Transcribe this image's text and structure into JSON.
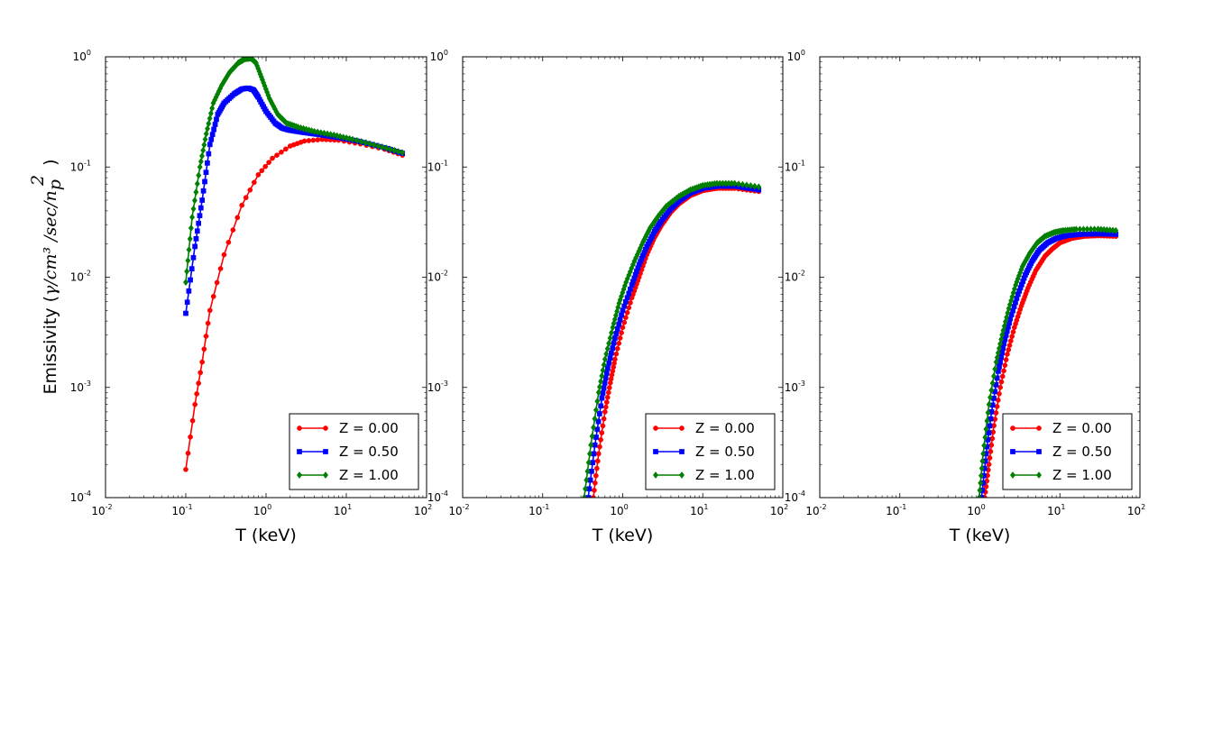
{
  "colors": {
    "red": "#ff0000",
    "blue": "#0000ff",
    "green": "#007f00"
  },
  "chart_data": [
    {
      "type": "line",
      "xscale": "log",
      "yscale": "log",
      "xlim": [
        0.01,
        100
      ],
      "ylim": [
        0.0001,
        1
      ],
      "xlabel": "T (keV)",
      "ylabel": "Emissivity (γ/cm³ /sec/n_p² )",
      "ylabel_prefix": "Emissivity (",
      "ylabel_math": "γ/cm³ /sec/n",
      "ylabel_sub": "p",
      "ylabel_sup": "2",
      "ylabel_suffix": " )",
      "x_ticks": [
        {
          "b": "10",
          "e": "-2",
          "v": 0.01
        },
        {
          "b": "10",
          "e": "-1",
          "v": 0.1
        },
        {
          "b": "10",
          "e": "0",
          "v": 1
        },
        {
          "b": "10",
          "e": "1",
          "v": 10
        },
        {
          "b": "10",
          "e": "2",
          "v": 100
        }
      ],
      "y_ticks": [
        {
          "b": "10",
          "e": "-4",
          "v": 0.0001
        },
        {
          "b": "10",
          "e": "-3",
          "v": 0.001
        },
        {
          "b": "10",
          "e": "-2",
          "v": 0.01
        },
        {
          "b": "10",
          "e": "-1",
          "v": 0.1
        },
        {
          "b": "10",
          "e": "0",
          "v": 1
        }
      ],
      "legend_position": "lower-right",
      "series": [
        {
          "name": "Z = 0.00",
          "color": "#ff0000",
          "marker": "circle",
          "x": [
            0.1,
            0.13,
            0.16,
            0.2,
            0.3,
            0.5,
            0.8,
            1.2,
            2,
            3,
            5,
            8,
            15,
            30,
            50
          ],
          "y": [
            0.00018,
            0.0007,
            0.0017,
            0.005,
            0.016,
            0.045,
            0.085,
            0.12,
            0.155,
            0.172,
            0.178,
            0.175,
            0.162,
            0.145,
            0.128
          ]
        },
        {
          "name": "Z = 0.50",
          "color": "#0000ff",
          "marker": "square",
          "x": [
            0.1,
            0.13,
            0.16,
            0.2,
            0.25,
            0.3,
            0.4,
            0.5,
            0.6,
            0.7,
            0.8,
            1.0,
            1.3,
            1.6,
            2,
            3,
            5,
            8,
            15,
            30,
            50
          ],
          "y": [
            0.0047,
            0.019,
            0.05,
            0.16,
            0.3,
            0.38,
            0.46,
            0.51,
            0.52,
            0.5,
            0.43,
            0.32,
            0.25,
            0.225,
            0.215,
            0.205,
            0.195,
            0.185,
            0.17,
            0.15,
            0.133
          ]
        },
        {
          "name": "Z = 1.00",
          "color": "#007f00",
          "marker": "diamond",
          "x": [
            0.1,
            0.12,
            0.15,
            0.18,
            0.22,
            0.28,
            0.35,
            0.45,
            0.55,
            0.65,
            0.75,
            0.9,
            1.1,
            1.4,
            1.8,
            2.5,
            4,
            7,
            12,
            25,
            50
          ],
          "y": [
            0.009,
            0.035,
            0.1,
            0.2,
            0.38,
            0.55,
            0.72,
            0.88,
            0.96,
            0.97,
            0.88,
            0.62,
            0.42,
            0.3,
            0.25,
            0.23,
            0.21,
            0.195,
            0.178,
            0.155,
            0.135
          ]
        }
      ]
    },
    {
      "type": "line",
      "xscale": "log",
      "yscale": "log",
      "xlim": [
        0.01,
        100
      ],
      "ylim": [
        0.0001,
        1
      ],
      "xlabel": "T (keV)",
      "x_ticks": [
        {
          "b": "10",
          "e": "-2",
          "v": 0.01
        },
        {
          "b": "10",
          "e": "-1",
          "v": 0.1
        },
        {
          "b": "10",
          "e": "0",
          "v": 1
        },
        {
          "b": "10",
          "e": "1",
          "v": 10
        },
        {
          "b": "10",
          "e": "2",
          "v": 100
        }
      ],
      "y_ticks": [
        {
          "b": "10",
          "e": "-4",
          "v": 0.0001
        },
        {
          "b": "10",
          "e": "-3",
          "v": 0.001
        },
        {
          "b": "10",
          "e": "-2",
          "v": 0.01
        },
        {
          "b": "10",
          "e": "-1",
          "v": 0.1
        },
        {
          "b": "10",
          "e": "0",
          "v": 1
        }
      ],
      "legend_position": "lower-right",
      "series": [
        {
          "name": "Z = 0.00",
          "color": "#ff0000",
          "marker": "circle",
          "x": [
            0.43,
            0.5,
            0.6,
            0.7,
            0.8,
            1,
            1.3,
            1.6,
            2,
            2.5,
            3,
            4,
            5,
            7,
            10,
            15,
            25,
            50
          ],
          "y": [
            0.0001,
            0.00025,
            0.0006,
            0.0011,
            0.0018,
            0.0035,
            0.0065,
            0.01,
            0.016,
            0.023,
            0.029,
            0.039,
            0.046,
            0.055,
            0.061,
            0.064,
            0.064,
            0.06
          ]
        },
        {
          "name": "Z = 0.50",
          "color": "#0000ff",
          "marker": "square",
          "x": [
            0.37,
            0.45,
            0.55,
            0.65,
            0.8,
            1,
            1.3,
            1.6,
            2,
            2.5,
            3,
            4,
            5,
            7,
            10,
            15,
            25,
            50
          ],
          "y": [
            0.0001,
            0.0003,
            0.0008,
            0.0015,
            0.0028,
            0.005,
            0.0085,
            0.013,
            0.019,
            0.026,
            0.032,
            0.042,
            0.049,
            0.058,
            0.064,
            0.067,
            0.067,
            0.062
          ]
        },
        {
          "name": "Z = 1.00",
          "color": "#007f00",
          "marker": "diamond",
          "x": [
            0.33,
            0.4,
            0.5,
            0.6,
            0.75,
            0.9,
            1.1,
            1.4,
            1.8,
            2.2,
            2.8,
            3.5,
            5,
            7,
            10,
            15,
            25,
            50
          ],
          "y": [
            0.0001,
            0.0003,
            0.0009,
            0.0018,
            0.0035,
            0.0058,
            0.009,
            0.014,
            0.021,
            0.028,
            0.036,
            0.044,
            0.054,
            0.062,
            0.068,
            0.071,
            0.071,
            0.066
          ]
        }
      ]
    },
    {
      "type": "line",
      "xscale": "log",
      "yscale": "log",
      "xlim": [
        0.01,
        100
      ],
      "ylim": [
        0.0001,
        1
      ],
      "xlabel": "T (keV)",
      "x_ticks": [
        {
          "b": "10",
          "e": "-2",
          "v": 0.01
        },
        {
          "b": "10",
          "e": "-1",
          "v": 0.1
        },
        {
          "b": "10",
          "e": "0",
          "v": 1
        },
        {
          "b": "10",
          "e": "1",
          "v": 10
        },
        {
          "b": "10",
          "e": "2",
          "v": 100
        }
      ],
      "y_ticks": [
        {
          "b": "10",
          "e": "-4",
          "v": 0.0001
        },
        {
          "b": "10",
          "e": "-3",
          "v": 0.001
        },
        {
          "b": "10",
          "e": "-2",
          "v": 0.01
        },
        {
          "b": "10",
          "e": "-1",
          "v": 0.1
        },
        {
          "b": "10",
          "e": "0",
          "v": 1
        }
      ],
      "legend_position": "lower-right",
      "series": [
        {
          "name": "Z = 0.00",
          "color": "#ff0000",
          "marker": "circle",
          "x": [
            1.15,
            1.3,
            1.5,
            1.8,
            2.2,
            2.7,
            3.3,
            4,
            5,
            6.5,
            8,
            10,
            14,
            20,
            30,
            50
          ],
          "y": [
            0.0001,
            0.0002,
            0.00045,
            0.001,
            0.002,
            0.0035,
            0.0055,
            0.008,
            0.0115,
            0.0155,
            0.018,
            0.0205,
            0.0225,
            0.0235,
            0.0238,
            0.0235
          ]
        },
        {
          "name": "Z = 0.50",
          "color": "#0000ff",
          "marker": "square",
          "x": [
            1.05,
            1.2,
            1.4,
            1.7,
            2,
            2.4,
            3,
            3.7,
            4.5,
            5.5,
            7,
            9,
            12,
            18,
            30,
            50
          ],
          "y": [
            0.0001,
            0.00025,
            0.0006,
            0.0014,
            0.0025,
            0.0042,
            0.007,
            0.0105,
            0.014,
            0.0175,
            0.0205,
            0.0225,
            0.0238,
            0.0245,
            0.0248,
            0.0245
          ]
        },
        {
          "name": "Z = 1.00",
          "color": "#007f00",
          "marker": "diamond",
          "x": [
            0.98,
            1.1,
            1.3,
            1.6,
            1.9,
            2.3,
            2.8,
            3.4,
            4.2,
            5.2,
            6.5,
            8.5,
            11,
            16,
            30,
            50
          ],
          "y": [
            0.0001,
            0.00025,
            0.0007,
            0.0017,
            0.003,
            0.0052,
            0.0085,
            0.0125,
            0.0165,
            0.0205,
            0.0235,
            0.0255,
            0.0265,
            0.0272,
            0.0273,
            0.0265
          ]
        }
      ]
    }
  ]
}
